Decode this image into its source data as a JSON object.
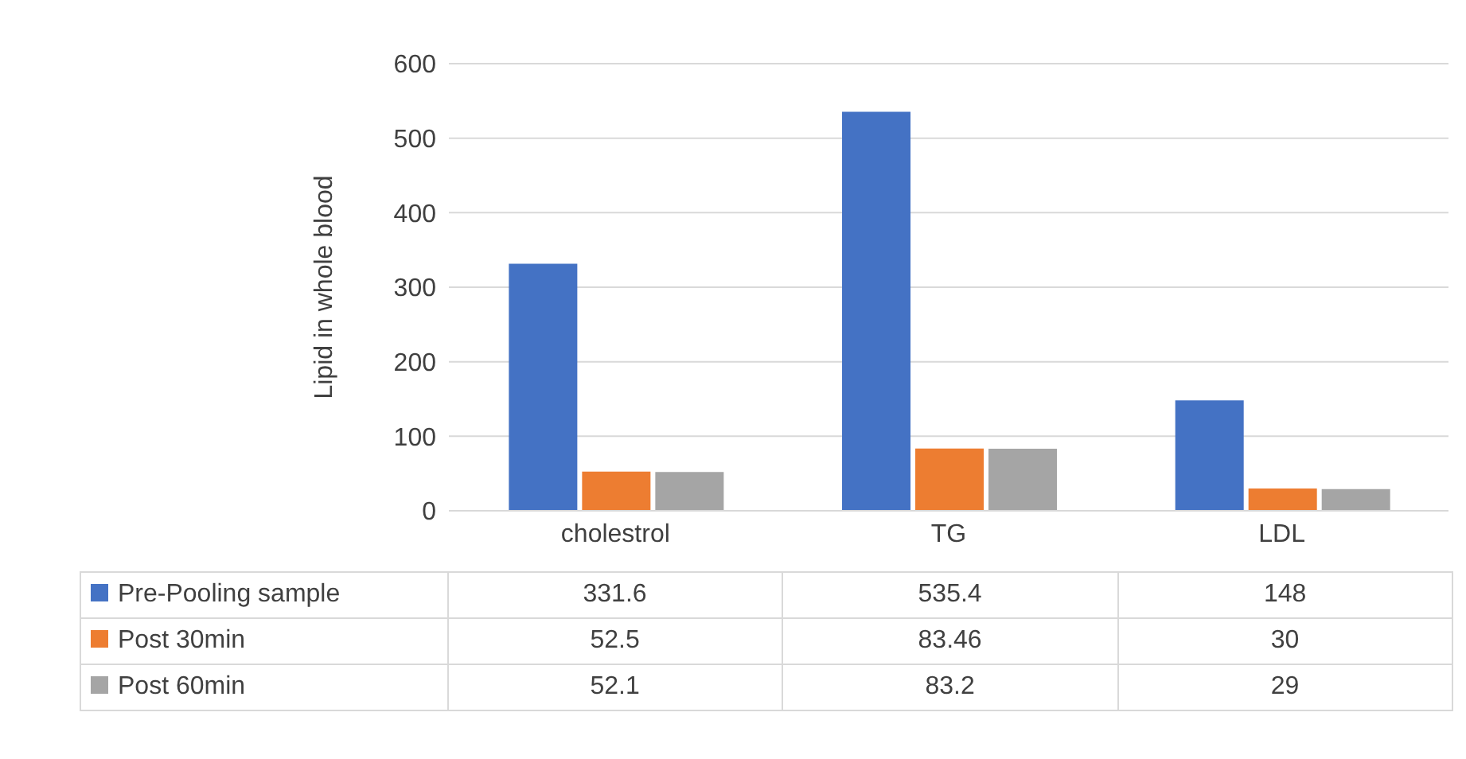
{
  "chart_data": {
    "type": "bar",
    "ylabel": "Lipid in whole blood",
    "categories": [
      "cholestrol",
      "TG",
      "LDL"
    ],
    "series": [
      {
        "name": "Pre-Pooling sample",
        "color": "#4472c4",
        "values": [
          331.6,
          535.4,
          148
        ]
      },
      {
        "name": "Post 30min",
        "color": "#ed7d31",
        "values": [
          52.5,
          83.46,
          30
        ]
      },
      {
        "name": "Post 60min",
        "color": "#a5a5a5",
        "values": [
          52.1,
          83.2,
          29
        ]
      }
    ],
    "ylim": [
      0,
      600
    ],
    "yticks": [
      0,
      100,
      200,
      300,
      400,
      500,
      600
    ],
    "grid": "y",
    "legend": "bottom",
    "data_labels": true
  }
}
